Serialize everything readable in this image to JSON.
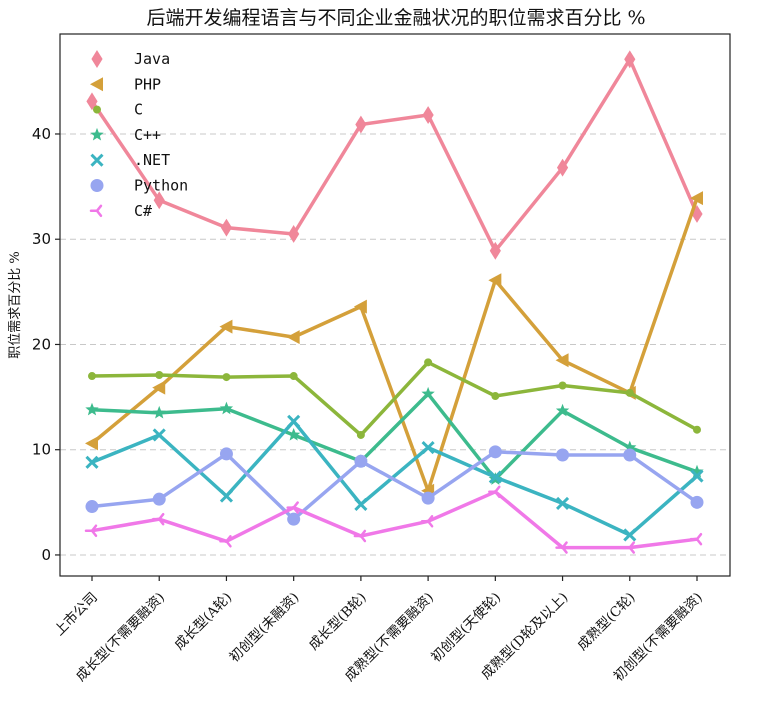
{
  "chart_data": {
    "type": "line",
    "title": "后端开发编程语言与不同企业金融状况的职位需求百分比 %",
    "xlabel": "",
    "ylabel": "职位需求百分比 %",
    "ylim": [
      -2,
      49.5
    ],
    "yticks": [
      0,
      10,
      20,
      30,
      40
    ],
    "grid": "horizontal dashed",
    "legend_position": "top-left",
    "categories": [
      "上市公司",
      "成长型(不需要融资)",
      "成长型(A轮)",
      "初创型(未融资)",
      "成长型(B轮)",
      "成熟型(不需要融资)",
      "初创型(天使轮)",
      "成熟型(D轮及以上)",
      "成熟型(C轮)",
      "初创型(不需要融资)"
    ],
    "series": [
      {
        "name": "Java",
        "color": "#f0879a",
        "marker": "thin-diamond",
        "values": [
          43.1,
          33.7,
          31.1,
          30.5,
          40.9,
          41.8,
          28.9,
          36.8,
          47.1,
          32.4
        ]
      },
      {
        "name": "PHP",
        "color": "#d4a03a",
        "marker": "triangle-left",
        "values": [
          10.6,
          15.9,
          21.7,
          20.7,
          23.6,
          6.1,
          26.1,
          18.5,
          15.4,
          33.9
        ]
      },
      {
        "name": "C",
        "color": "#8cb63b",
        "marker": "point",
        "values": [
          17.0,
          17.1,
          16.9,
          17.0,
          11.4,
          18.3,
          15.1,
          16.1,
          15.4,
          11.9
        ]
      },
      {
        "name": "C++",
        "color": "#3dbb8d",
        "marker": "star",
        "values": [
          13.8,
          13.5,
          13.9,
          11.4,
          8.9,
          15.3,
          7.2,
          13.7,
          10.2,
          7.9
        ]
      },
      {
        "name": ".NET",
        "color": "#3bb4c1",
        "marker": "x",
        "values": [
          8.8,
          11.4,
          5.6,
          12.7,
          4.8,
          10.2,
          7.4,
          4.9,
          1.9,
          7.5
        ]
      },
      {
        "name": "Python",
        "color": "#97a5f0",
        "marker": "circle",
        "values": [
          4.6,
          5.3,
          9.6,
          3.4,
          8.9,
          5.4,
          9.8,
          9.5,
          9.5,
          5.0
        ]
      },
      {
        "name": "C#",
        "color": "#f078e8",
        "marker": "tri-left",
        "values": [
          2.3,
          3.4,
          1.3,
          4.5,
          1.8,
          3.2,
          6.0,
          0.7,
          0.7,
          1.5
        ]
      }
    ]
  }
}
